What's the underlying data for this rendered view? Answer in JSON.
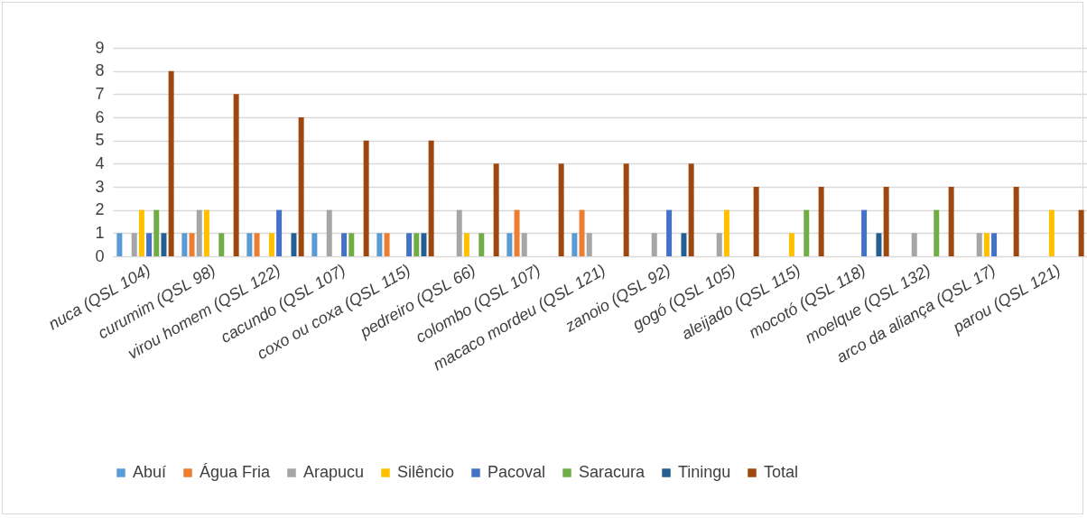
{
  "chart_data": {
    "type": "bar",
    "categories": [
      "nuca (QSL 104)",
      "curumim (QSL 98)",
      "virou homem (QSL 122)",
      "cacundo (QSL 107)",
      "coxo ou coxa (QSL 115)",
      "pedreiro (QSL 66)",
      "colombo (QSL 107)",
      "macaco mordeu (QSL 121)",
      "zanoio (QSL 92)",
      "gogó (QSL 105)",
      "aleijado (QSL 115)",
      "mocotó (QSL 118)",
      "moelque (QSL 132)",
      "arco da aliança (QSL 17)",
      "parou (QSL 121)"
    ],
    "series": [
      {
        "name": "Abuí",
        "color": "#5b9bd5",
        "values": [
          1,
          1,
          1,
          1,
          1,
          0,
          1,
          1,
          0,
          0,
          0,
          0,
          0,
          0,
          0
        ]
      },
      {
        "name": "Água Fria",
        "color": "#ed7d31",
        "values": [
          0,
          1,
          1,
          0,
          1,
          0,
          2,
          2,
          0,
          0,
          0,
          0,
          0,
          0,
          0
        ]
      },
      {
        "name": "Arapucu",
        "color": "#a5a5a5",
        "values": [
          1,
          2,
          0,
          2,
          0,
          2,
          1,
          1,
          1,
          1,
          0,
          0,
          1,
          1,
          0
        ]
      },
      {
        "name": "Silêncio",
        "color": "#ffc000",
        "values": [
          2,
          2,
          1,
          0,
          0,
          1,
          0,
          0,
          0,
          2,
          1,
          0,
          0,
          1,
          2
        ]
      },
      {
        "name": "Pacoval",
        "color": "#4472c4",
        "values": [
          1,
          0,
          2,
          1,
          1,
          0,
          0,
          0,
          2,
          0,
          0,
          2,
          0,
          1,
          0
        ]
      },
      {
        "name": "Saracura",
        "color": "#70ad47",
        "values": [
          2,
          1,
          0,
          1,
          1,
          1,
          0,
          0,
          0,
          0,
          2,
          0,
          2,
          0,
          0
        ]
      },
      {
        "name": "Tiningu",
        "color": "#255e91",
        "values": [
          1,
          0,
          1,
          0,
          1,
          0,
          0,
          0,
          1,
          0,
          0,
          1,
          0,
          0,
          0
        ]
      },
      {
        "name": "Total",
        "color": "#9e480e",
        "values": [
          8,
          7,
          6,
          5,
          5,
          4,
          4,
          4,
          4,
          3,
          3,
          3,
          3,
          3,
          2
        ]
      }
    ],
    "ylim": [
      0,
      9
    ],
    "yticks": [
      0,
      1,
      2,
      3,
      4,
      5,
      6,
      7,
      8,
      9
    ],
    "grid": "y",
    "legend": "bottom"
  }
}
